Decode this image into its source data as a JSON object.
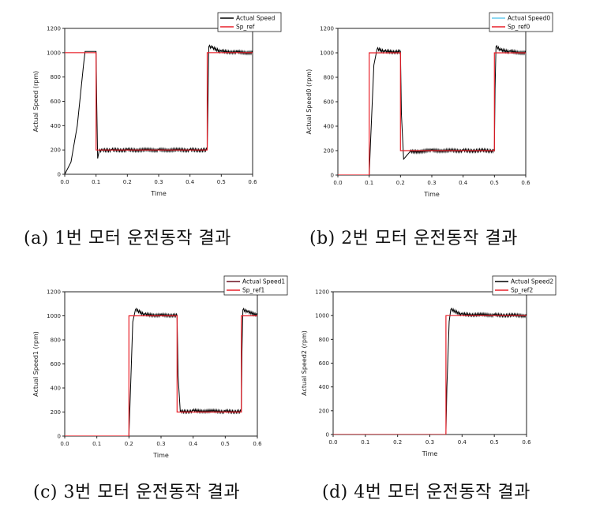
{
  "figure": {
    "captions": [
      "(a) 1번 모터 운전동작 결과",
      "(b) 2번 모터 운전동작 결과",
      "(c) 3번 모터 운전동작 결과",
      "(d) 4번 모터 운전동작 결과"
    ]
  },
  "colors": {
    "speed": "#000000",
    "reference": "#e8202a",
    "axis": "#222222"
  },
  "chart_data": [
    {
      "type": "line",
      "xlabel": "Time",
      "ylabel": "Actual Speed (rpm)",
      "xlim": [
        0,
        0.6
      ],
      "ylim": [
        0,
        1200
      ],
      "xticks": [
        0.0,
        0.1,
        0.2,
        0.3,
        0.4,
        0.5,
        0.6
      ],
      "yticks": [
        0,
        200,
        400,
        600,
        800,
        1000,
        1200
      ],
      "legend": "top-right",
      "series": [
        {
          "name": "Actual Speed",
          "color": "#000000",
          "x": [
            0,
            0.02,
            0.04,
            0.06,
            0.065,
            0.1,
            0.102,
            0.105,
            0.11,
            0.12,
            0.15,
            0.2,
            0.3,
            0.4,
            0.455,
            0.458,
            0.46,
            0.47,
            0.5,
            0.55,
            0.6
          ],
          "y": [
            0,
            100,
            400,
            900,
            1010,
            1010,
            600,
            130,
            190,
            195,
            200,
            200,
            200,
            200,
            200,
            700,
            1050,
            1040,
            1010,
            1005,
            1000
          ]
        },
        {
          "name": "Sp_ref",
          "color": "#e8202a",
          "x": [
            0,
            0.1,
            0.1,
            0.455,
            0.455,
            0.6
          ],
          "y": [
            1000,
            1000,
            200,
            200,
            1000,
            1000
          ]
        }
      ]
    },
    {
      "type": "line",
      "xlabel": "Time",
      "ylabel": "Actual Speed0 (rpm)",
      "xlim": [
        0,
        0.6
      ],
      "ylim": [
        0,
        1200
      ],
      "xticks": [
        0.0,
        0.1,
        0.2,
        0.3,
        0.4,
        0.5,
        0.6
      ],
      "yticks": [
        0,
        200,
        400,
        600,
        800,
        1000,
        1200
      ],
      "legend": "top-right",
      "series": [
        {
          "name": "Actual Speed0",
          "color": "#66ccee",
          "x": [
            0,
            0.1,
            0.105,
            0.115,
            0.125,
            0.15,
            0.2,
            0.203,
            0.21,
            0.23,
            0.3,
            0.4,
            0.5,
            0.502,
            0.505,
            0.52,
            0.55,
            0.6
          ],
          "y": [
            0,
            0,
            300,
            900,
            1030,
            1010,
            1010,
            500,
            130,
            190,
            200,
            200,
            200,
            700,
            1050,
            1020,
            1010,
            1000
          ]
        },
        {
          "name": "Sp_ref0",
          "color": "#e8202a",
          "x": [
            0,
            0.1,
            0.1,
            0.2,
            0.2,
            0.5,
            0.5,
            0.6
          ],
          "y": [
            0,
            0,
            1000,
            1000,
            200,
            200,
            1000,
            1000
          ]
        }
      ]
    },
    {
      "type": "line",
      "xlabel": "Time",
      "ylabel": "Actual Speed1 (rpm)",
      "xlim": [
        0,
        0.6
      ],
      "ylim": [
        0,
        1200
      ],
      "xticks": [
        0.0,
        0.1,
        0.2,
        0.3,
        0.4,
        0.5,
        0.6
      ],
      "yticks": [
        0,
        200,
        400,
        600,
        800,
        1000,
        1200
      ],
      "legend": "top-right",
      "series": [
        {
          "name": "Actual Speed1",
          "color": "#6b1020",
          "x": [
            0,
            0.2,
            0.205,
            0.212,
            0.22,
            0.25,
            0.3,
            0.35,
            0.353,
            0.36,
            0.4,
            0.5,
            0.55,
            0.552,
            0.555,
            0.57,
            0.6
          ],
          "y": [
            0,
            0,
            400,
            950,
            1050,
            1010,
            1005,
            1005,
            500,
            200,
            210,
            205,
            205,
            700,
            1050,
            1030,
            1010
          ]
        },
        {
          "name": "Sp_ref1",
          "color": "#e8202a",
          "x": [
            0,
            0.2,
            0.2,
            0.35,
            0.35,
            0.55,
            0.55,
            0.6
          ],
          "y": [
            0,
            0,
            1000,
            1000,
            200,
            200,
            1000,
            1000
          ]
        }
      ]
    },
    {
      "type": "line",
      "xlabel": "Time",
      "ylabel": "Actual Speed2 (rpm)",
      "xlim": [
        0,
        0.6
      ],
      "ylim": [
        0,
        1200
      ],
      "xticks": [
        0.0,
        0.1,
        0.2,
        0.3,
        0.4,
        0.5,
        0.6
      ],
      "yticks": [
        0,
        200,
        400,
        600,
        800,
        1000,
        1200
      ],
      "legend": "top-right",
      "series": [
        {
          "name": "Actual Speed2",
          "color": "#000000",
          "x": [
            0,
            0.35,
            0.353,
            0.36,
            0.365,
            0.4,
            0.5,
            0.6
          ],
          "y": [
            0,
            0,
            400,
            950,
            1050,
            1010,
            1005,
            1000
          ]
        },
        {
          "name": "Sp_ref2",
          "color": "#e8202a",
          "x": [
            0,
            0.35,
            0.35,
            0.6
          ],
          "y": [
            0,
            0,
            1000,
            1000
          ]
        }
      ]
    }
  ]
}
